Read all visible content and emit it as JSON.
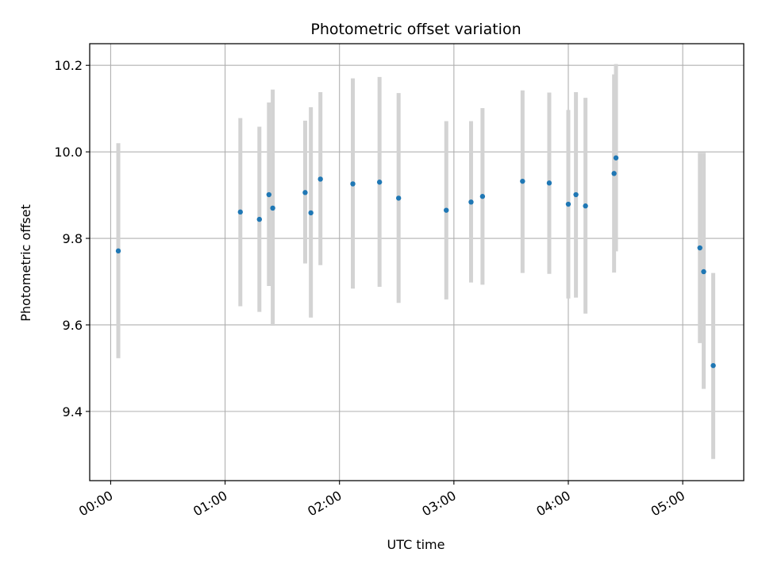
{
  "chart_data": {
    "type": "scatter",
    "title": "Photometric offset variation",
    "xlabel": "UTC time",
    "ylabel": "Photometric offset",
    "x_unit": "UTC time (HH:MM)",
    "xlim": [
      "23:49",
      "05:32"
    ],
    "ylim": [
      9.24,
      10.25
    ],
    "x_ticks": [
      "00:00",
      "01:00",
      "02:00",
      "03:00",
      "04:00",
      "05:00"
    ],
    "y_ticks": [
      9.4,
      9.6,
      9.8,
      10.0,
      10.2
    ],
    "y_tick_labels": [
      "9.4",
      "9.6",
      "9.8",
      "10.0",
      "10.2"
    ],
    "grid": true,
    "marker_color": "#1f77b4",
    "errorbar_color": "#d3d3d3",
    "points": [
      {
        "x": "00:04",
        "y": 9.771,
        "lo": 9.523,
        "hi": 10.02
      },
      {
        "x": "01:08",
        "y": 9.861,
        "lo": 9.643,
        "hi": 10.078
      },
      {
        "x": "01:18",
        "y": 9.844,
        "lo": 9.63,
        "hi": 10.058
      },
      {
        "x": "01:23",
        "y": 9.901,
        "lo": 9.69,
        "hi": 10.114
      },
      {
        "x": "01:25",
        "y": 9.87,
        "lo": 9.598,
        "hi": 10.144
      },
      {
        "x": "01:42",
        "y": 9.906,
        "lo": 9.742,
        "hi": 10.072
      },
      {
        "x": "01:45",
        "y": 9.859,
        "lo": 9.617,
        "hi": 10.103
      },
      {
        "x": "01:50",
        "y": 9.937,
        "lo": 9.738,
        "hi": 10.138
      },
      {
        "x": "02:07",
        "y": 9.926,
        "lo": 9.684,
        "hi": 10.17
      },
      {
        "x": "02:21",
        "y": 9.93,
        "lo": 9.688,
        "hi": 10.173
      },
      {
        "x": "02:31",
        "y": 9.893,
        "lo": 9.651,
        "hi": 10.136
      },
      {
        "x": "02:56",
        "y": 9.865,
        "lo": 9.659,
        "hi": 10.071
      },
      {
        "x": "03:09",
        "y": 9.884,
        "lo": 9.698,
        "hi": 10.071
      },
      {
        "x": "03:15",
        "y": 9.897,
        "lo": 9.693,
        "hi": 10.101
      },
      {
        "x": "03:36",
        "y": 9.932,
        "lo": 9.72,
        "hi": 10.142
      },
      {
        "x": "03:50",
        "y": 9.928,
        "lo": 9.718,
        "hi": 10.137
      },
      {
        "x": "04:00",
        "y": 9.879,
        "lo": 9.661,
        "hi": 10.097
      },
      {
        "x": "04:04",
        "y": 9.901,
        "lo": 9.663,
        "hi": 10.138
      },
      {
        "x": "04:09",
        "y": 9.875,
        "lo": 9.626,
        "hi": 10.125
      },
      {
        "x": "04:24",
        "y": 9.95,
        "lo": 9.721,
        "hi": 10.179
      },
      {
        "x": "04:25",
        "y": 9.986,
        "lo": 9.77,
        "hi": 10.203
      },
      {
        "x": "05:09",
        "y": 9.778,
        "lo": 9.558,
        "hi": 9.998
      },
      {
        "x": "05:11",
        "y": 9.723,
        "lo": 9.452,
        "hi": 9.998
      },
      {
        "x": "05:16",
        "y": 9.506,
        "lo": 9.29,
        "hi": 9.72
      }
    ]
  }
}
